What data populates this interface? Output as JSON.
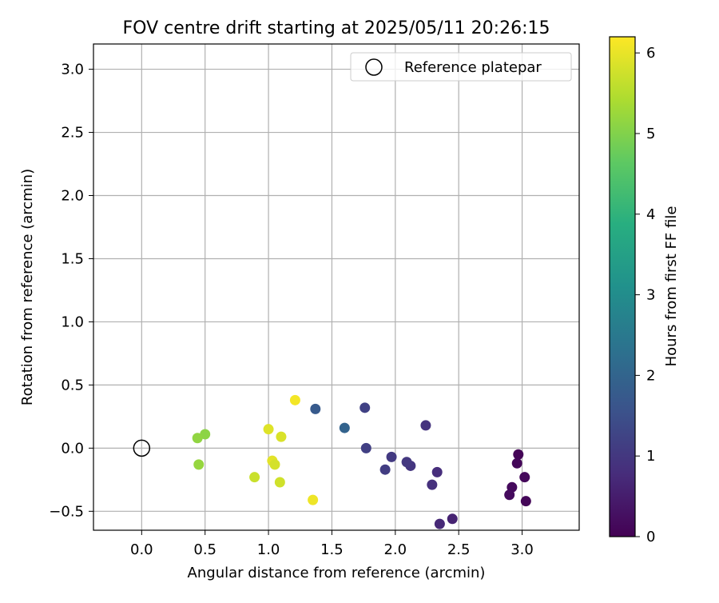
{
  "chart_data": {
    "type": "scatter",
    "title": "FOV centre drift starting at 2025/05/11 20:26:15",
    "xlabel": "Angular distance from reference (arcmin)",
    "ylabel": "Rotation from reference (arcmin)",
    "xlim": [
      -0.38,
      3.45
    ],
    "ylim": [
      -0.65,
      3.2
    ],
    "xticks": [
      "0.0",
      "0.5",
      "1.0",
      "1.5",
      "2.0",
      "2.5",
      "3.0"
    ],
    "yticks": [
      "−0.5",
      "0.0",
      "0.5",
      "1.0",
      "1.5",
      "2.0",
      "2.5",
      "3.0"
    ],
    "grid": true,
    "legend": {
      "placement": "top-right",
      "entries": [
        {
          "label": "Reference platepar",
          "marker": "open-circle"
        }
      ]
    },
    "reference_point": {
      "x": 0.0,
      "y": 0.0
    },
    "colorbar": {
      "label": "Hours from first FF file",
      "range": [
        0,
        6.2
      ],
      "ticks": [
        "0",
        "1",
        "2",
        "3",
        "4",
        "5",
        "6"
      ],
      "colormap": "viridis"
    },
    "points": [
      {
        "x": 2.97,
        "y": -0.05,
        "hours": 0.05
      },
      {
        "x": 2.96,
        "y": -0.12,
        "hours": 0.1
      },
      {
        "x": 3.02,
        "y": -0.23,
        "hours": 0.12
      },
      {
        "x": 2.92,
        "y": -0.31,
        "hours": 0.15
      },
      {
        "x": 2.9,
        "y": -0.37,
        "hours": 0.18
      },
      {
        "x": 3.03,
        "y": -0.42,
        "hours": 0.08
      },
      {
        "x": 2.45,
        "y": -0.56,
        "hours": 0.6
      },
      {
        "x": 2.35,
        "y": -0.6,
        "hours": 0.7
      },
      {
        "x": 2.33,
        "y": -0.19,
        "hours": 0.8
      },
      {
        "x": 2.29,
        "y": -0.29,
        "hours": 0.85
      },
      {
        "x": 2.24,
        "y": 0.18,
        "hours": 0.9
      },
      {
        "x": 2.12,
        "y": -0.14,
        "hours": 0.95
      },
      {
        "x": 2.09,
        "y": -0.11,
        "hours": 1.0
      },
      {
        "x": 1.97,
        "y": -0.07,
        "hours": 1.05
      },
      {
        "x": 1.92,
        "y": -0.17,
        "hours": 1.1
      },
      {
        "x": 1.77,
        "y": 0.0,
        "hours": 1.15
      },
      {
        "x": 1.76,
        "y": 0.32,
        "hours": 1.2
      },
      {
        "x": 1.6,
        "y": 0.16,
        "hours": 1.95
      },
      {
        "x": 1.37,
        "y": 0.31,
        "hours": 1.75
      },
      {
        "x": 1.21,
        "y": 0.38,
        "hours": 6.1
      },
      {
        "x": 1.35,
        "y": -0.41,
        "hours": 6.05
      },
      {
        "x": 1.0,
        "y": 0.15,
        "hours": 5.9
      },
      {
        "x": 1.1,
        "y": 0.09,
        "hours": 5.85
      },
      {
        "x": 1.03,
        "y": -0.1,
        "hours": 5.95
      },
      {
        "x": 1.05,
        "y": -0.13,
        "hours": 5.8
      },
      {
        "x": 1.09,
        "y": -0.27,
        "hours": 5.75
      },
      {
        "x": 0.89,
        "y": -0.23,
        "hours": 5.7
      },
      {
        "x": 0.5,
        "y": 0.11,
        "hours": 5.1
      },
      {
        "x": 0.44,
        "y": 0.08,
        "hours": 5.15
      },
      {
        "x": 0.45,
        "y": -0.13,
        "hours": 5.2
      }
    ]
  }
}
